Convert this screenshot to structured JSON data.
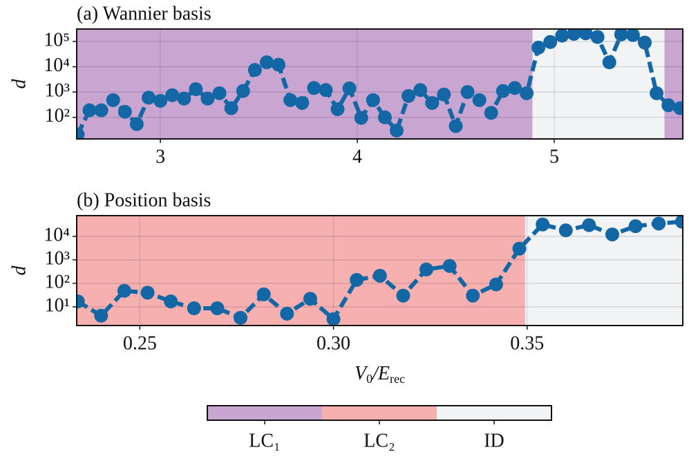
{
  "chart_data": [
    {
      "type": "line",
      "title": "(a) Wannier basis",
      "ylabel": "d",
      "ylog": true,
      "grid": true,
      "color": "#1367a4",
      "x": [
        2.58,
        2.64,
        2.7,
        2.76,
        2.82,
        2.88,
        2.94,
        3.0,
        3.06,
        3.12,
        3.18,
        3.24,
        3.3,
        3.36,
        3.42,
        3.48,
        3.54,
        3.6,
        3.66,
        3.72,
        3.78,
        3.84,
        3.9,
        3.96,
        4.02,
        4.08,
        4.14,
        4.2,
        4.26,
        4.32,
        4.38,
        4.44,
        4.5,
        4.56,
        4.62,
        4.68,
        4.74,
        4.8,
        4.86,
        4.92,
        4.98,
        5.04,
        5.1,
        5.16,
        5.22,
        5.28,
        5.34,
        5.4,
        5.46,
        5.52,
        5.58,
        5.64
      ],
      "values": [
        21,
        190,
        190,
        480,
        165,
        54,
        600,
        450,
        750,
        550,
        1300,
        550,
        900,
        230,
        1100,
        7500,
        15000,
        12000,
        480,
        370,
        1450,
        1200,
        210,
        1400,
        95,
        480,
        100,
        30,
        700,
        1200,
        370,
        800,
        45,
        1000,
        480,
        150,
        1100,
        1450,
        900,
        57000,
        95000,
        170000,
        200000,
        210000,
        150000,
        15000,
        190000,
        180000,
        90000,
        900,
        300,
        230
      ],
      "xlim": [
        2.575,
        5.653
      ],
      "xticks": [
        3,
        4,
        5
      ],
      "ylim": [
        14,
        310000
      ],
      "yticks": [
        {
          "value": 100,
          "label": "10²"
        },
        {
          "value": 1000,
          "label": "10³"
        },
        {
          "value": 10000,
          "label": "10⁴"
        },
        {
          "value": 100000,
          "label": "10⁵"
        }
      ],
      "regions": [
        {
          "phase": 0,
          "from": 2.575,
          "to": 4.89
        },
        {
          "phase": 2,
          "from": 4.89,
          "to": 5.56
        },
        {
          "phase": 0,
          "from": 5.56,
          "to": 5.653
        }
      ]
    },
    {
      "type": "line",
      "title": "(b) Position basis",
      "ylabel": "d",
      "ylog": true,
      "grid": true,
      "color": "#1367a4",
      "xlabel": [
        "V",
        "0",
        "/E",
        "rec"
      ],
      "x": [
        0.234,
        0.24,
        0.246,
        0.252,
        0.258,
        0.264,
        0.27,
        0.276,
        0.282,
        0.288,
        0.294,
        0.3,
        0.306,
        0.312,
        0.318,
        0.324,
        0.33,
        0.336,
        0.342,
        0.348,
        0.354,
        0.36,
        0.366,
        0.372,
        0.378,
        0.384,
        0.39
      ],
      "values": [
        17,
        4.2,
        48,
        40,
        17,
        8.7,
        8.7,
        3.4,
        34,
        5.1,
        22,
        3,
        140,
        210,
        30,
        390,
        550,
        30,
        90,
        3000,
        32000,
        18000,
        30000,
        12000,
        27000,
        35000,
        42000
      ],
      "xlim": [
        0.2337,
        0.3902
      ],
      "xticks": [
        0.25,
        {
          "value": 0.3,
          "label": "0.30"
        },
        0.35
      ],
      "ylim": [
        1.6,
        76000
      ],
      "yticks": [
        {
          "value": 10,
          "label": "10¹"
        },
        {
          "value": 100,
          "label": "10²"
        },
        {
          "value": 1000,
          "label": "10³"
        },
        {
          "value": 10000,
          "label": "10⁴"
        }
      ],
      "regions": [
        {
          "phase": 1,
          "from": 0.2337,
          "to": 0.3495
        },
        {
          "phase": 2,
          "from": 0.3495,
          "to": 0.3902
        }
      ]
    }
  ],
  "colorbar": {
    "phases": [
      {
        "name": "LC₁",
        "color": "#c9a5d2"
      },
      {
        "name": "LC₂",
        "color": "#f6b0b0"
      },
      {
        "name": "ID",
        "color": "#f1f3f5"
      }
    ]
  }
}
